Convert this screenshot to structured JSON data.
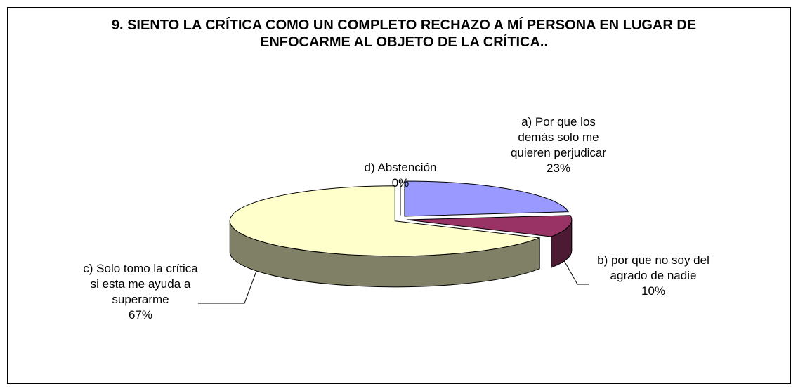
{
  "chart_data": {
    "type": "pie3d",
    "title": "9. SIENTO LA CRÍTICA COMO UN COMPLETO RECHAZO A MÍ PERSONA EN LUGAR DE ENFOCARME AL OBJETO DE LA CRÍTICA..",
    "categories": [
      "a) Por que los demás solo me quieren perjudicar",
      "b) por que no soy del agrado de nadie",
      "c) Solo tomo la crítica si esta me ayuda a superarme",
      "d) Abstención"
    ],
    "values": [
      23,
      10,
      67,
      0
    ],
    "value_labels": [
      "23%",
      "10%",
      "67%",
      "0%"
    ],
    "colors": [
      "#9999ff",
      "#993366",
      "#ffffcc",
      "#ffffff"
    ]
  }
}
